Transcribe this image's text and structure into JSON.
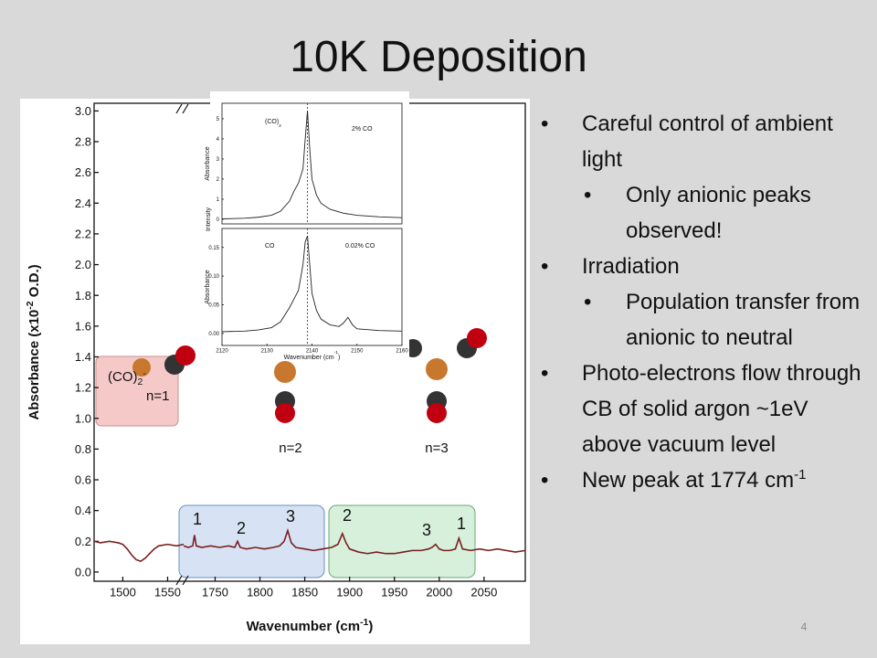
{
  "slide": {
    "title": "10K Deposition",
    "page_number": "4",
    "inset_label": "Intensity",
    "bullets": [
      {
        "text": "Careful control of ambient light",
        "children": [
          {
            "text": "Only anionic peaks observed!"
          }
        ]
      },
      {
        "text": "Irradiation",
        "children": [
          {
            "text": "Population transfer from anionic to neutral"
          }
        ]
      },
      {
        "text": "Photo-electrons flow through CB of solid argon ~1eV above vacuum level"
      },
      {
        "text": "New peak at 1774 cm",
        "superscript": "-1"
      }
    ]
  },
  "chart_data": [
    {
      "type": "line",
      "color": "#7b1e1e",
      "ylabel_parts": [
        "Absorbance (x10",
        "-2",
        " O.D.)"
      ],
      "xlabel_parts": [
        "Wavenumber (cm",
        "-1",
        ")"
      ],
      "xlim": [
        1468,
        2096
      ],
      "axis_break": [
        1568,
        1715
      ],
      "xticks": [
        1500,
        1550,
        1750,
        1800,
        1850,
        1900,
        1950,
        2000,
        2050
      ],
      "ylim": [
        -0.06,
        3.05
      ],
      "yticks": [
        {
          "value": 0,
          "label": "0.0"
        },
        0.2,
        0.4,
        0.6,
        0.8,
        {
          "value": 1,
          "label": "1.0"
        },
        1.2,
        1.4,
        1.6,
        1.8,
        {
          "value": 2,
          "label": "2.0"
        },
        2.2,
        2.4,
        2.6,
        2.8,
        {
          "value": 3,
          "label": "3.0"
        }
      ],
      "x": [
        1468,
        1475,
        1485,
        1495,
        1500,
        1505,
        1510,
        1515,
        1520,
        1525,
        1530,
        1535,
        1540,
        1550,
        1560,
        1568,
        1640,
        1715,
        1720,
        1725,
        1727,
        1729,
        1735,
        1745,
        1755,
        1765,
        1772,
        1775,
        1778,
        1785,
        1795,
        1805,
        1815,
        1822,
        1827,
        1831,
        1835,
        1840,
        1850,
        1860,
        1870,
        1880,
        1887,
        1892,
        1896,
        1900,
        1910,
        1920,
        1930,
        1940,
        1950,
        1960,
        1970,
        1980,
        1988,
        1992,
        1996,
        2000,
        2005,
        2012,
        2018,
        2022,
        2026,
        2035,
        2045,
        2055,
        2065,
        2075,
        2085,
        2096
      ],
      "values": [
        0.2,
        0.19,
        0.2,
        0.19,
        0.18,
        0.15,
        0.11,
        0.08,
        0.07,
        0.09,
        0.12,
        0.15,
        0.17,
        0.18,
        0.17,
        0.18,
        null,
        0.17,
        0.16,
        0.17,
        0.24,
        0.17,
        0.16,
        0.17,
        0.16,
        0.17,
        0.16,
        0.2,
        0.16,
        0.15,
        0.16,
        0.15,
        0.16,
        0.17,
        0.2,
        0.27,
        0.19,
        0.16,
        0.15,
        0.14,
        0.15,
        0.16,
        0.18,
        0.25,
        0.19,
        0.15,
        0.13,
        0.12,
        0.13,
        0.12,
        0.12,
        0.13,
        0.14,
        0.14,
        0.15,
        0.16,
        0.18,
        0.15,
        0.14,
        0.14,
        0.15,
        0.22,
        0.15,
        0.14,
        0.15,
        0.14,
        0.15,
        0.14,
        0.13,
        0.14
      ],
      "annotations": [
        {
          "text": "(CO)",
          "subscript": "2",
          "superscript": "-"
        },
        {
          "text": "n=1"
        },
        {
          "text": "n=2"
        },
        {
          "text": "n=3"
        },
        {
          "text": "1"
        },
        {
          "text": "2"
        },
        {
          "text": "3"
        },
        {
          "text": "2"
        },
        {
          "text": "3"
        },
        {
          "text": "1"
        }
      ]
    },
    {
      "type": "line",
      "color": "#222222",
      "ylabel": "Absorbance",
      "xlim": [
        2120,
        2160
      ],
      "ylim": [
        -0.23,
        5.77
      ],
      "yticks": [
        0,
        1,
        2,
        3,
        4,
        5
      ],
      "vline": 2139,
      "x": [
        2120,
        2125,
        2128,
        2131,
        2133,
        2135,
        2136,
        2137,
        2138,
        2138.5,
        2139,
        2139.5,
        2140,
        2141,
        2142,
        2144,
        2147,
        2150,
        2155,
        2160
      ],
      "values": [
        0.02,
        0.05,
        0.1,
        0.2,
        0.4,
        0.9,
        1.4,
        1.8,
        2.5,
        4,
        5.4,
        3.5,
        2,
        1.2,
        0.8,
        0.5,
        0.3,
        0.2,
        0.12,
        0.08
      ],
      "annotations": [
        {
          "text": "(CO)",
          "subscript": "2"
        },
        {
          "text": "2% CO"
        }
      ]
    },
    {
      "type": "line",
      "color": "#222222",
      "ylabel": "Absorbance",
      "xlabel_parts": [
        "Wavenumber (cm",
        "-1",
        ")"
      ],
      "xlim": [
        2120,
        2160
      ],
      "xticks": [
        2120,
        2130,
        2140,
        2150,
        2160
      ],
      "ylim": [
        -0.021,
        0.183
      ],
      "yticks": [
        {
          "value": 0,
          "label": "0.00"
        },
        0.05,
        {
          "value": 0.1,
          "label": "0.10"
        },
        0.15
      ],
      "vline": 2139,
      "x": [
        2120,
        2125,
        2128,
        2131,
        2133,
        2135,
        2136,
        2137,
        2138,
        2138.5,
        2139,
        2139.5,
        2140,
        2141,
        2142,
        2144,
        2146,
        2147,
        2148,
        2149,
        2150,
        2155,
        2160
      ],
      "values": [
        0.003,
        0.004,
        0.006,
        0.01,
        0.02,
        0.045,
        0.06,
        0.075,
        0.12,
        0.16,
        0.17,
        0.12,
        0.07,
        0.04,
        0.025,
        0.015,
        0.012,
        0.018,
        0.028,
        0.015,
        0.008,
        0.005,
        0.004
      ],
      "annotations": [
        {
          "text": "CO"
        },
        {
          "text": "0.02% CO"
        }
      ]
    }
  ]
}
